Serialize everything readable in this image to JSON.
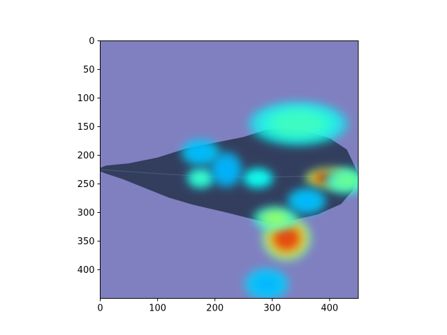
{
  "chart_data": {
    "type": "heatmap",
    "title": "",
    "xlabel": "",
    "ylabel": "",
    "xlim": [
      0,
      450
    ],
    "ylim": [
      450,
      0
    ],
    "x_ticks": [
      0,
      100,
      200,
      300,
      400
    ],
    "y_ticks": [
      0,
      50,
      100,
      150,
      200,
      250,
      300,
      350,
      400
    ],
    "image": {
      "background_color": "#8080c0",
      "leaf_color": "#2e3a58",
      "leaf_outline": [
        [
          0,
          222
        ],
        [
          10,
          218
        ],
        [
          50,
          214
        ],
        [
          100,
          204
        ],
        [
          150,
          188
        ],
        [
          200,
          178
        ],
        [
          250,
          168
        ],
        [
          290,
          155
        ],
        [
          320,
          153
        ],
        [
          360,
          158
        ],
        [
          400,
          170
        ],
        [
          430,
          190
        ],
        [
          450,
          232
        ],
        [
          440,
          262
        ],
        [
          420,
          285
        ],
        [
          380,
          303
        ],
        [
          330,
          315
        ],
        [
          300,
          320
        ],
        [
          260,
          310
        ],
        [
          220,
          300
        ],
        [
          160,
          286
        ],
        [
          120,
          274
        ],
        [
          80,
          258
        ],
        [
          40,
          242
        ],
        [
          10,
          232
        ],
        [
          0,
          228
        ]
      ],
      "hotspots": [
        {
          "x": 400,
          "y": 240,
          "intensity": 1.0,
          "rx": 28,
          "ry": 12
        },
        {
          "x": 325,
          "y": 345,
          "intensity": 0.9,
          "rx": 28,
          "ry": 26
        },
        {
          "x": 305,
          "y": 310,
          "intensity": 0.55,
          "rx": 25,
          "ry": 14
        },
        {
          "x": 345,
          "y": 145,
          "intensity": 0.45,
          "rx": 55,
          "ry": 25
        },
        {
          "x": 175,
          "y": 240,
          "intensity": 0.45,
          "rx": 16,
          "ry": 12
        },
        {
          "x": 275,
          "y": 240,
          "intensity": 0.4,
          "rx": 18,
          "ry": 12
        },
        {
          "x": 430,
          "y": 245,
          "intensity": 0.5,
          "rx": 25,
          "ry": 15
        },
        {
          "x": 175,
          "y": 195,
          "intensity": 0.3,
          "rx": 22,
          "ry": 15
        },
        {
          "x": 290,
          "y": 425,
          "intensity": 0.3,
          "rx": 25,
          "ry": 18
        },
        {
          "x": 220,
          "y": 225,
          "intensity": 0.25,
          "rx": 18,
          "ry": 20
        },
        {
          "x": 360,
          "y": 280,
          "intensity": 0.3,
          "rx": 22,
          "ry": 15
        }
      ]
    }
  }
}
